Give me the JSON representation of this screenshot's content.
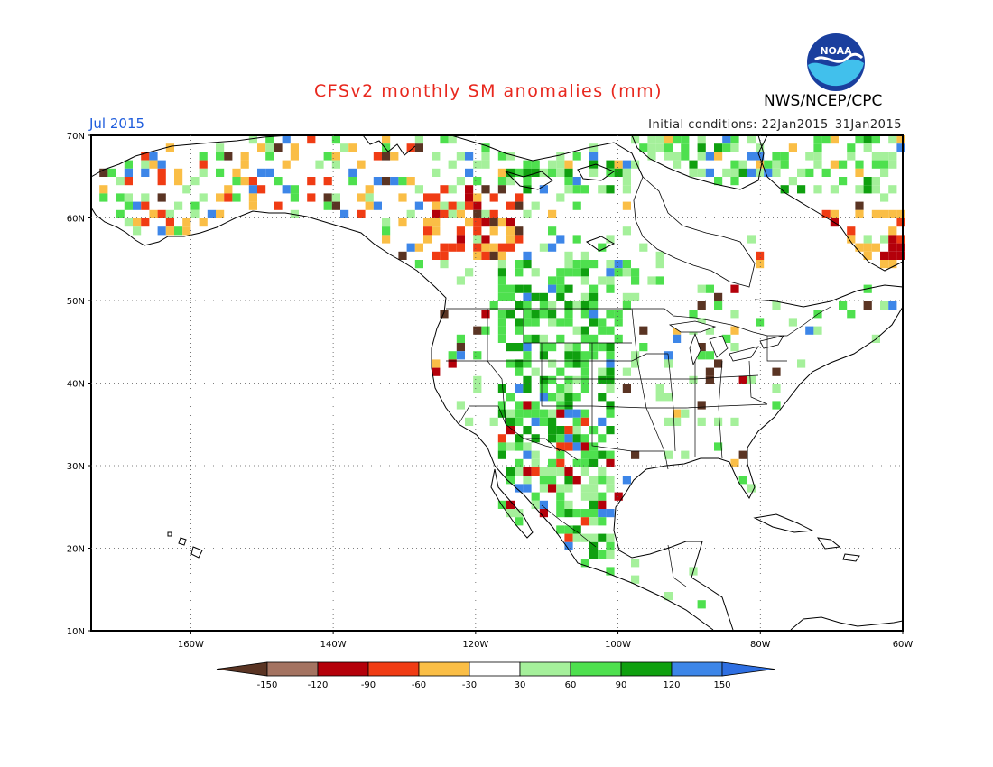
{
  "header": {
    "title": "CFSv2 monthly SM anomalies (mm)",
    "org": "NWS/NCEP/CPC",
    "valid_month": "Jul 2015",
    "initial_conditions": "Initial conditions: 22Jan2015–31Jan2015",
    "logo_text": "NOAA"
  },
  "map": {
    "lon_range": [
      -174,
      -60
    ],
    "lat_range": [
      10,
      70
    ],
    "lat_ticks": [
      "70N",
      "60N",
      "50N",
      "40N",
      "30N",
      "20N",
      "10N"
    ],
    "lon_ticks": [
      "160W",
      "140W",
      "120W",
      "100W",
      "80W",
      "60W"
    ]
  },
  "legend": {
    "tick_labels": [
      "-150",
      "-120",
      "-90",
      "-60",
      "-30",
      "30",
      "60",
      "90",
      "120",
      "150"
    ],
    "colors": [
      "#5a3423",
      "#a47361",
      "#b4000a",
      "#f03c14",
      "#fabe46",
      "#ffffff",
      "#a5f09b",
      "#4ee04e",
      "#0fa00f",
      "#3d86e8",
      "#2e6fe2"
    ]
  },
  "colors": {
    "title": "#e8281e",
    "month": "#1e5cdc",
    "coast": "#000000"
  }
}
